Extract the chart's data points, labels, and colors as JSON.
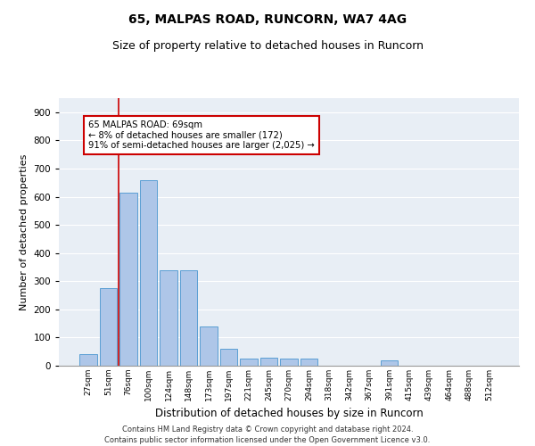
{
  "title1": "65, MALPAS ROAD, RUNCORN, WA7 4AG",
  "title2": "Size of property relative to detached houses in Runcorn",
  "xlabel": "Distribution of detached houses by size in Runcorn",
  "ylabel": "Number of detached properties",
  "categories": [
    "27sqm",
    "51sqm",
    "76sqm",
    "100sqm",
    "124sqm",
    "148sqm",
    "173sqm",
    "197sqm",
    "221sqm",
    "245sqm",
    "270sqm",
    "294sqm",
    "318sqm",
    "342sqm",
    "367sqm",
    "391sqm",
    "415sqm",
    "439sqm",
    "464sqm",
    "488sqm",
    "512sqm"
  ],
  "values": [
    40,
    275,
    615,
    660,
    340,
    340,
    140,
    60,
    25,
    30,
    25,
    25,
    0,
    0,
    0,
    20,
    0,
    0,
    0,
    0,
    0
  ],
  "bar_color": "#aec6e8",
  "bar_edge_color": "#5a9fd4",
  "annotation_text": "65 MALPAS ROAD: 69sqm\n← 8% of detached houses are smaller (172)\n91% of semi-detached houses are larger (2,025) →",
  "annotation_box_color": "#ffffff",
  "annotation_box_edge": "#cc0000",
  "vline_color": "#cc0000",
  "vline_x": 1.5,
  "footer1": "Contains HM Land Registry data © Crown copyright and database right 2024.",
  "footer2": "Contains public sector information licensed under the Open Government Licence v3.0.",
  "ylim": [
    0,
    950
  ],
  "yticks": [
    0,
    100,
    200,
    300,
    400,
    500,
    600,
    700,
    800,
    900
  ],
  "bg_color": "#e8eef5",
  "title1_fontsize": 10,
  "title2_fontsize": 9
}
